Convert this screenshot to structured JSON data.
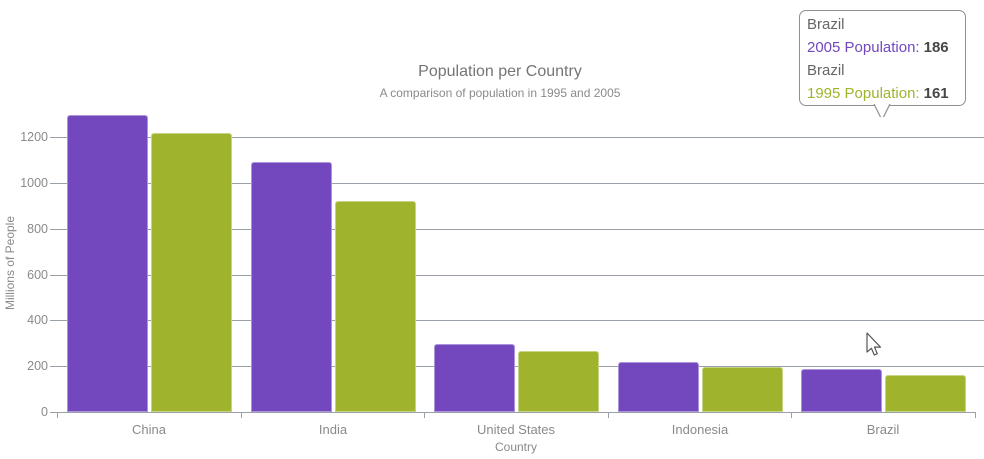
{
  "chart": {
    "title": "Population per Country",
    "subtitle": "A comparison of population in 1995 and 2005",
    "x_axis_title": "Country",
    "y_axis_title": "Millions of People"
  },
  "chart_data": {
    "type": "bar",
    "title": "Population per Country",
    "subtitle": "A comparison of population in 1995 and 2005",
    "xlabel": "Country",
    "ylabel": "Millions of People",
    "categories": [
      "China",
      "India",
      "United States",
      "Indonesia",
      "Brazil"
    ],
    "series": [
      {
        "name": "2005 Population",
        "color": "#7347BE",
        "values": [
          1297,
          1090,
          295,
          220,
          186
        ]
      },
      {
        "name": "1995 Population",
        "color": "#9FB32D",
        "values": [
          1216,
          920,
          266,
          197,
          161
        ]
      }
    ],
    "ylim": [
      0,
      1200
    ],
    "yticks": [
      0,
      200,
      400,
      600,
      800,
      1000,
      1200
    ],
    "grid": true,
    "legend": "none"
  },
  "tooltip": {
    "row_2005": {
      "country": "Brazil",
      "label": "2005 Population:",
      "value": "186"
    },
    "row_1995": {
      "country": "Brazil",
      "label": "1995 Population:",
      "value": "161"
    }
  },
  "colors": {
    "series_2005": "#7347BE",
    "series_1995": "#9FB32D",
    "grid": "#99A0A7",
    "axis_text": "#8A8A8A",
    "title_text": "#757575",
    "tooltip_border": "#909090",
    "tooltip_country": "#666666",
    "tooltip_value": "#474747"
  },
  "icons": {
    "cursor": "arrow-pointer"
  }
}
